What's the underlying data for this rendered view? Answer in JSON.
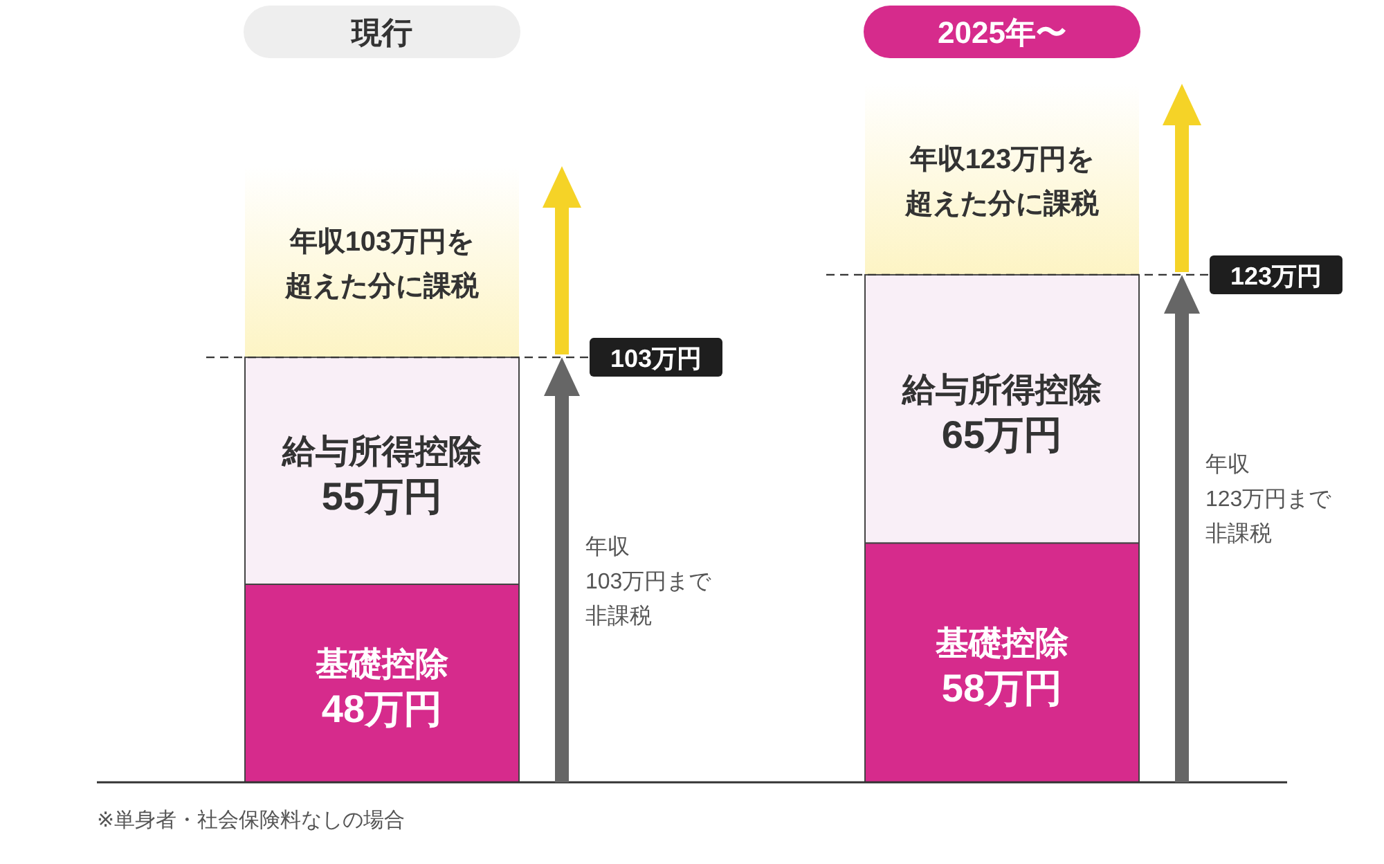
{
  "chart_data": {
    "type": "bar",
    "stacked": true,
    "categories": [
      "現行",
      "2025年〜"
    ],
    "series": [
      {
        "name": "基礎控除",
        "color": "#d62b8c",
        "values": [
          48,
          58
        ],
        "value_labels": [
          "48万円",
          "58万円"
        ]
      },
      {
        "name": "給与所得控除",
        "color": "#f9eff7",
        "values": [
          55,
          65
        ],
        "value_labels": [
          "55万円",
          "65万円"
        ]
      }
    ],
    "ref_lines": [
      {
        "axis": "y",
        "value": 103,
        "label": "103万円",
        "line_style": "dashed",
        "color": "#333333"
      },
      {
        "axis": "y",
        "value": 123,
        "label": "123万円",
        "line_style": "dashed",
        "color": "#333333"
      }
    ],
    "annotations": [
      "年収103万円を",
      "超えた分に課税",
      "年収",
      "103万円まで",
      "非課税",
      "年収123万円を",
      "超えた分に課税",
      "年収",
      "123万円まで",
      "非課税",
      "※単身者・社会保険料なしの場合"
    ]
  }
}
